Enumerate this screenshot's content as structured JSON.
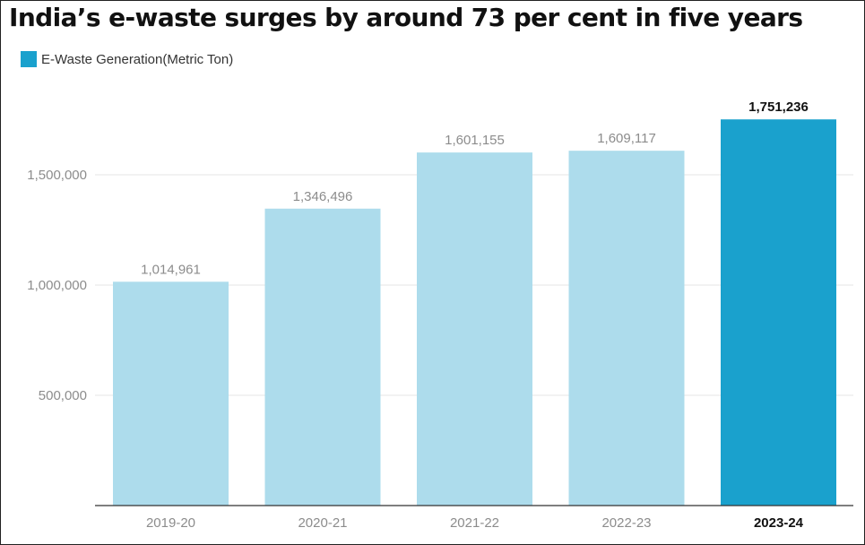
{
  "title": "India’s e-waste surges by around 73 per cent in five years",
  "legend": {
    "label": "E-Waste Generation(Metric Ton)",
    "color": "#1aa1cd"
  },
  "colors": {
    "bar": "#addcec",
    "highlight": "#1aa1cd",
    "gridline": "#e6e6e6",
    "baseline": "#333333"
  },
  "chart_data": {
    "type": "bar",
    "title": "India’s e-waste surges by around 73 per cent in five years",
    "xlabel": "",
    "ylabel": "",
    "categories": [
      "2019-20",
      "2020-21",
      "2021-22",
      "2022-23",
      "2023-24"
    ],
    "series": [
      {
        "name": "E-Waste Generation(Metric Ton)",
        "values": [
          1014961,
          1346496,
          1601155,
          1609117,
          1751236
        ]
      }
    ],
    "data_labels": [
      "1,014,961",
      "1,346,496",
      "1,601,155",
      "1,609,117",
      "1,751,236"
    ],
    "highlight_index": 4,
    "ylim": [
      0,
      1800000
    ],
    "yticks": [
      500000,
      1000000,
      1500000
    ],
    "ytick_labels": [
      "500,000",
      "1,000,000",
      "1,500,000"
    ],
    "grid": true,
    "legend_position": "top-left"
  }
}
